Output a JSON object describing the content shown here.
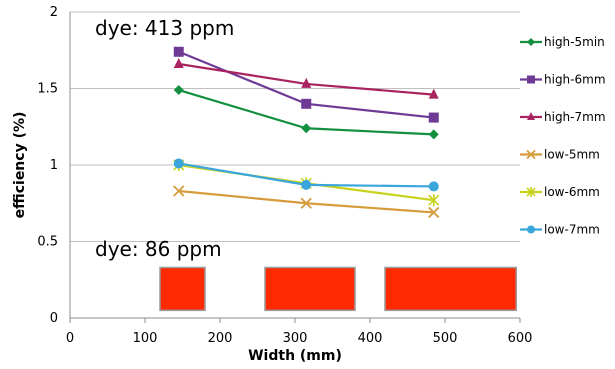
{
  "chart_data": {
    "type": "line",
    "xlabel": "Width (mm)",
    "ylabel": "efficiency (%)",
    "xlim": [
      0,
      600
    ],
    "ylim": [
      0,
      2
    ],
    "xticks": [
      "0",
      "100",
      "200",
      "300",
      "400",
      "500",
      "600"
    ],
    "yticks": [
      "0",
      "0.5",
      "1",
      "1.5",
      "2"
    ],
    "grid": "horizontal",
    "legend_position": "right",
    "annotations": [
      "dye: 413 ppm",
      "dye: 86 ppm"
    ],
    "rectangles": [
      {
        "x0": 120,
        "x1": 180,
        "y0": 0.05,
        "y1": 0.33
      },
      {
        "x0": 260,
        "x1": 380,
        "y0": 0.05,
        "y1": 0.33
      },
      {
        "x0": 420,
        "x1": 595,
        "y0": 0.05,
        "y1": 0.33
      }
    ],
    "rectangle_color": "#ff2a00",
    "series": [
      {
        "name": "high-5min",
        "color": "#129040",
        "marker": "diamond",
        "x": [
          145,
          315,
          485
        ],
        "y": [
          1.49,
          1.24,
          1.2
        ]
      },
      {
        "name": "high-6mm",
        "color": "#6e3a96",
        "marker": "square",
        "x": [
          145,
          315,
          485
        ],
        "y": [
          1.74,
          1.4,
          1.31
        ]
      },
      {
        "name": "high-7mm",
        "color": "#a8235f",
        "marker": "triangle",
        "x": [
          145,
          315,
          485
        ],
        "y": [
          1.66,
          1.53,
          1.46
        ]
      },
      {
        "name": "low-5mm",
        "color": "#d69b3a",
        "marker": "x",
        "x": [
          145,
          315,
          485
        ],
        "y": [
          0.83,
          0.75,
          0.69
        ]
      },
      {
        "name": "low-6mm",
        "color": "#c8d21a",
        "marker": "star",
        "x": [
          145,
          315,
          485
        ],
        "y": [
          1.0,
          0.88,
          0.77
        ]
      },
      {
        "name": "low-7mm",
        "color": "#3aa6dc",
        "marker": "circle",
        "x": [
          145,
          315,
          485
        ],
        "y": [
          1.01,
          0.87,
          0.86
        ]
      }
    ]
  }
}
